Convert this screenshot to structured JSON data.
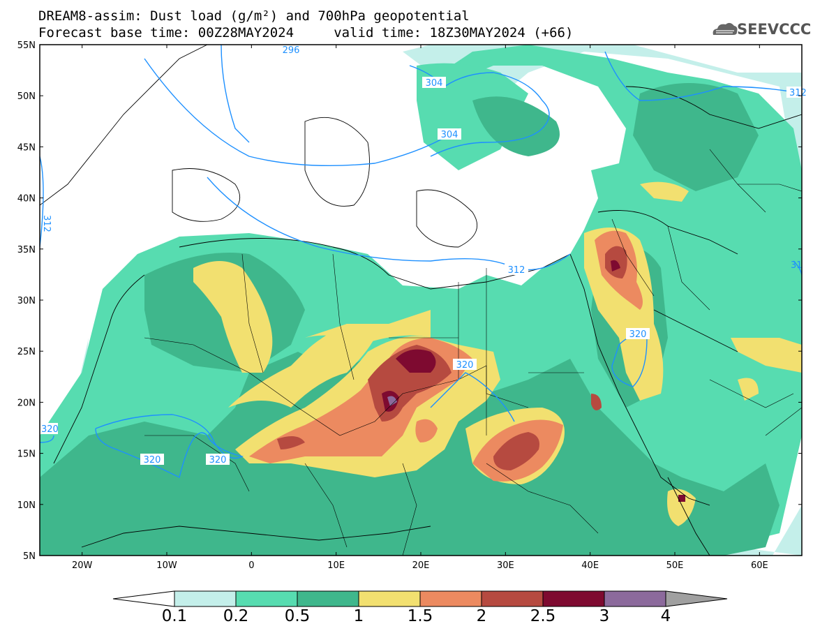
{
  "title": {
    "line1": "DREAM8-assim: Dust load (g/m²) and 700hPa geopotential",
    "line2": "Forecast base time: 00Z28MAY2024     valid time: 18Z30MAY2024 (+66)"
  },
  "logo": {
    "text": "SEEVCCC",
    "icon": "cloud-logo-icon"
  },
  "map": {
    "lat_labels": [
      "55N",
      "50N",
      "45N",
      "40N",
      "35N",
      "30N",
      "25N",
      "20N",
      "15N",
      "10N",
      "5N"
    ],
    "lon_labels": [
      "20W",
      "10W",
      "0",
      "10E",
      "20E",
      "30E",
      "40E",
      "50E",
      "60E"
    ],
    "contour_labels": [
      "296",
      "304",
      "304",
      "312",
      "312",
      "312",
      "320",
      "320",
      "320",
      "320",
      "320",
      "31"
    ],
    "lat_range": [
      5,
      55
    ],
    "lon_range": [
      -25,
      65
    ]
  },
  "colorbar": {
    "levels": [
      "0.1",
      "0.2",
      "0.5",
      "1",
      "1.5",
      "2",
      "2.5",
      "3",
      "4"
    ],
    "colors": [
      "#c4efea",
      "#57dcb0",
      "#3fb78c",
      "#f2e070",
      "#ec8a60",
      "#b64a40",
      "#7e0a30",
      "#8c6a9c",
      "#a0a0a0"
    ]
  }
}
